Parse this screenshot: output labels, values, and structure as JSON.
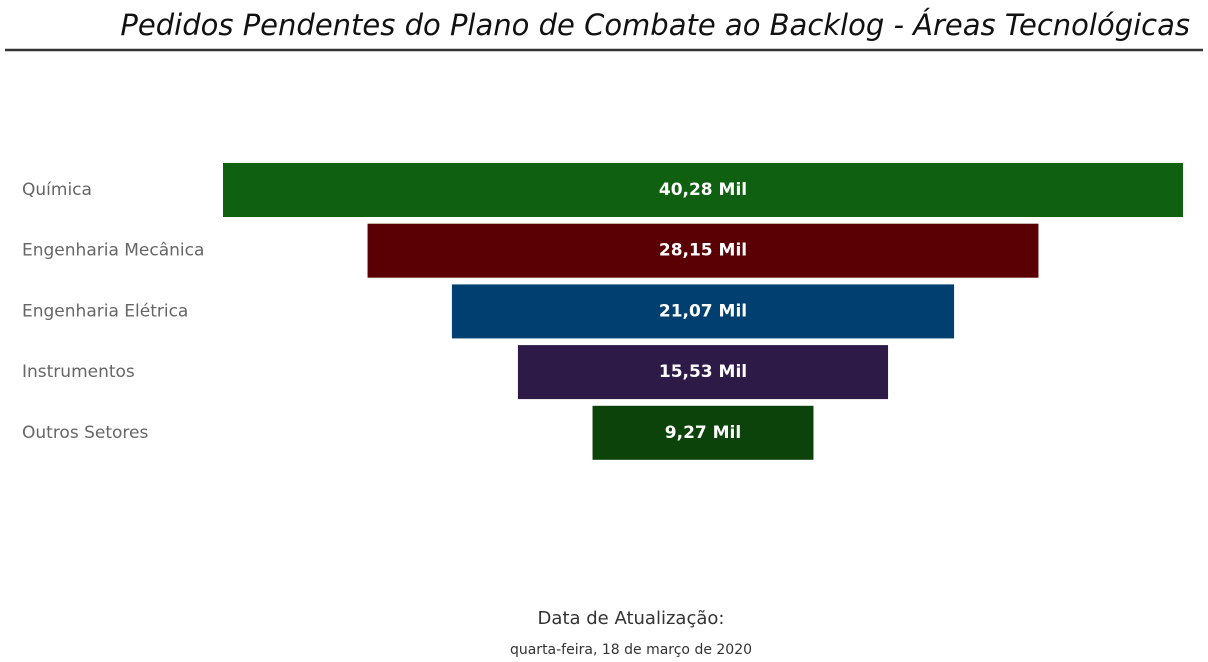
{
  "chart_data": {
    "type": "funnel",
    "title": "Pedidos Pendentes do Plano de Combate ao Backlog - Áreas Tecnológicas",
    "categories": [
      "Química",
      "Engenharia Mecânica",
      "Engenharia Elétrica",
      "Instrumentos",
      "Outros Setores"
    ],
    "values": [
      40.28,
      28.15,
      21.07,
      15.53,
      9.27
    ],
    "value_labels": [
      "40,28 Mil",
      "28,15 Mil",
      "21,07 Mil",
      "15,53 Mil",
      "9,27 Mil"
    ],
    "colors": [
      "#0f6010",
      "#5a0004",
      "#003f6f",
      "#2e1a47",
      "#0b430b"
    ],
    "update_label": "Data de Atualização:",
    "update_date": "quarta-feira, 18 de março de 2020"
  }
}
